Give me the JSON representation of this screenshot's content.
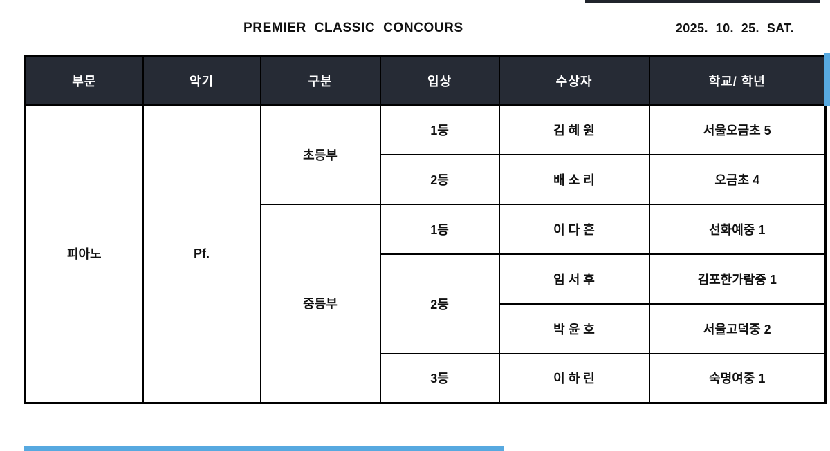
{
  "colors": {
    "header_bg": "#262b35",
    "header_text": "#ffffff",
    "border": "#000000",
    "accent_blue": "#57a9e0",
    "body_text": "#111111"
  },
  "header": {
    "title": "PREMIER CLASSIC CONCOURS",
    "date": "2025.  10.  25.  SAT."
  },
  "table": {
    "columns": [
      "부문",
      "악기",
      "구분",
      "입상",
      "수상자",
      "학교/ 학년"
    ],
    "body_rows": [
      [
        {
          "name": "category",
          "text": "피아노",
          "rowspan": 6
        },
        {
          "name": "instrument",
          "text": "Pf.",
          "rowspan": 6
        },
        {
          "name": "division",
          "text": "초등부",
          "rowspan": 2
        },
        {
          "name": "rank",
          "text": "1등"
        },
        {
          "name": "winner",
          "text": "김 혜 원"
        },
        {
          "name": "school",
          "text": "서울오금초 5"
        }
      ],
      [
        {
          "name": "rank",
          "text": "2등"
        },
        {
          "name": "winner",
          "text": "배 소 리"
        },
        {
          "name": "school",
          "text": "오금초 4"
        }
      ],
      [
        {
          "name": "division",
          "text": "중등부",
          "rowspan": 4
        },
        {
          "name": "rank",
          "text": "1등"
        },
        {
          "name": "winner",
          "text": "이 다 흔"
        },
        {
          "name": "school",
          "text": "선화예중 1"
        }
      ],
      [
        {
          "name": "rank",
          "text": "2등",
          "rowspan": 2
        },
        {
          "name": "winner",
          "text": "임 서 후"
        },
        {
          "name": "school",
          "text": "김포한가람중 1"
        }
      ],
      [
        {
          "name": "winner",
          "text": "박 윤 호"
        },
        {
          "name": "school",
          "text": "서울고덕중 2"
        }
      ],
      [
        {
          "name": "rank",
          "text": "3등"
        },
        {
          "name": "winner",
          "text": "이 하 린"
        },
        {
          "name": "school",
          "text": "숙명여중 1"
        }
      ]
    ]
  }
}
